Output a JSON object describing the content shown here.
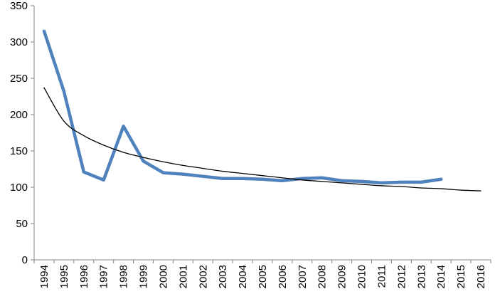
{
  "chart_data": {
    "type": "line",
    "title": "",
    "xlabel": "",
    "ylabel": "",
    "categories": [
      "1994",
      "1995",
      "1996",
      "1997",
      "1998",
      "1999",
      "2000",
      "2001",
      "2002",
      "2003",
      "2004",
      "2005",
      "2006",
      "2007",
      "2008",
      "2009",
      "2010",
      "2011",
      "2012",
      "2013",
      "2014",
      "2015",
      "2016"
    ],
    "ylim": [
      0,
      350
    ],
    "yticks": [
      "0",
      "50",
      "100",
      "150",
      "200",
      "250",
      "300",
      "350"
    ],
    "grid": false,
    "legend": "none",
    "series": [
      {
        "color": "#4f81bd",
        "values": [
          315,
          232,
          121,
          110,
          184,
          136,
          120,
          118,
          115,
          112,
          112,
          111,
          109,
          112,
          113,
          109,
          108,
          106,
          107,
          107,
          111,
          null,
          null
        ]
      },
      {
        "color": "#000000",
        "style": "thin trendline (logarithmic)",
        "values": [
          237,
          191,
          171,
          158,
          148,
          141,
          135,
          130,
          126,
          122,
          119,
          116,
          113,
          110,
          108,
          106,
          104,
          102,
          101,
          99,
          98,
          96,
          95
        ]
      }
    ]
  }
}
